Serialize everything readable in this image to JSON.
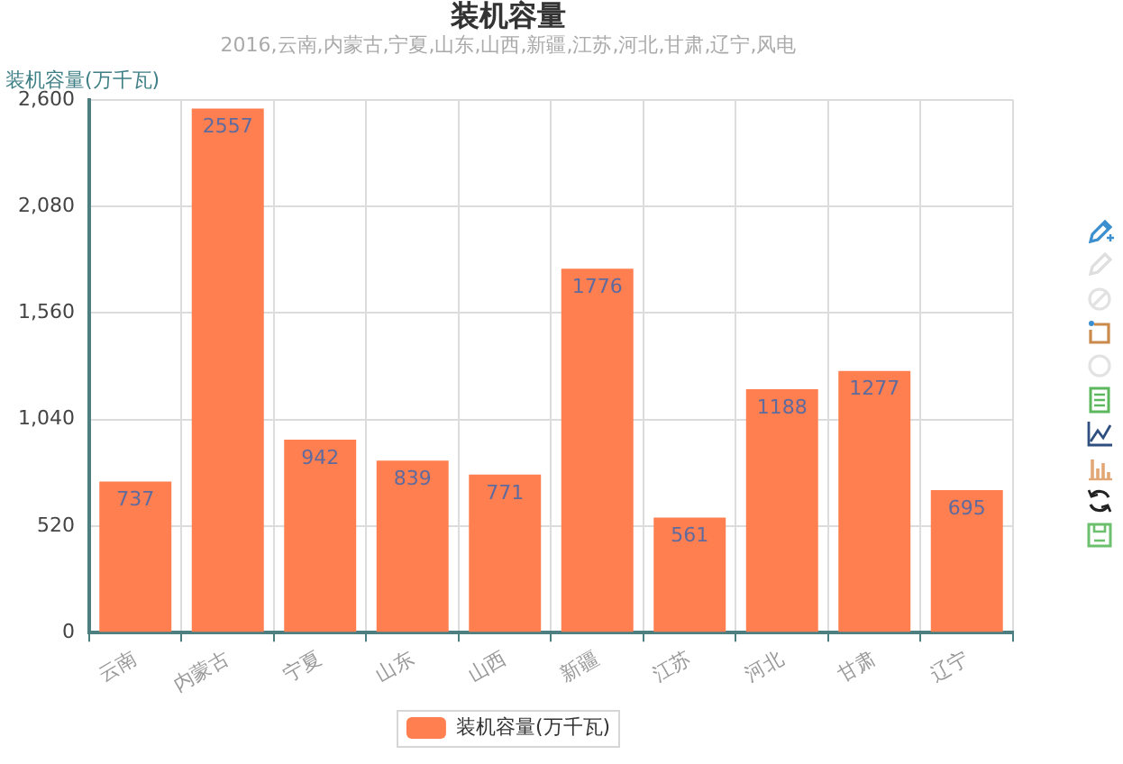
{
  "chart_data": {
    "type": "bar",
    "title": "装机容量",
    "subtitle": "2016,云南,内蒙古,宁夏,山东,山西,新疆,江苏,河北,甘肃,辽宁,风电",
    "ylabel": "装机容量(万千瓦)",
    "categories": [
      "云南",
      "内蒙古",
      "宁夏",
      "山东",
      "山西",
      "新疆",
      "江苏",
      "河北",
      "甘肃",
      "辽宁"
    ],
    "series": [
      {
        "name": "装机容量(万千瓦)",
        "color": "#ff7f50",
        "values": [
          737,
          2557,
          942,
          839,
          771,
          1776,
          561,
          1188,
          1277,
          695
        ]
      }
    ],
    "ylim": [
      0,
      2600
    ],
    "yticks": [
      0,
      520,
      {
        "value": 1040,
        "label": "1,040"
      },
      {
        "value": 1560,
        "label": "1,560"
      },
      {
        "value": 2080,
        "label": "2,080"
      },
      {
        "value": 2600,
        "label": "2,600"
      }
    ],
    "grid": true,
    "legend": "bottom",
    "data_labels": true
  }
}
